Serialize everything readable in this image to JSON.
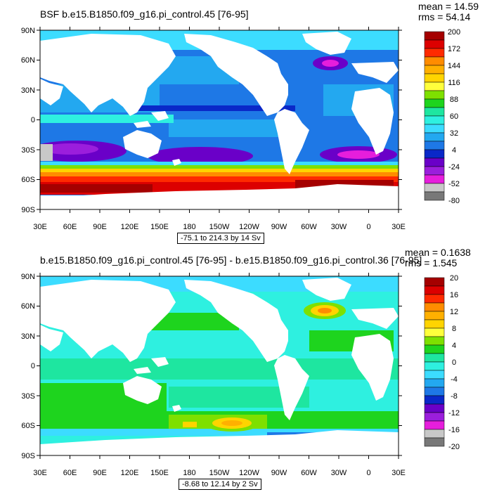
{
  "map_panels": [
    {
      "title": "BSF b.e15.B1850.f09_g16.pi_control.45 [76-95]",
      "mean_text": "mean = 14.59",
      "rms_text": "rms = 54.14",
      "range_text": "-75.1 to 214.3 by 14 Sv",
      "colorbar": {
        "labels": [
          "200",
          "172",
          "144",
          "116",
          "88",
          "60",
          "32",
          "4",
          "-24",
          "-52",
          "-80"
        ],
        "colors": [
          "#a50000",
          "#dc0000",
          "#ff2a00",
          "#ff8c00",
          "#ffb000",
          "#ffd400",
          "#ffff3c",
          "#7ee000",
          "#1ed41e",
          "#1ee6a0",
          "#2ef0e0",
          "#3cdcff",
          "#23a8f0",
          "#1e78e6",
          "#0a28c8",
          "#6a00c8",
          "#9b1edc",
          "#e61edc",
          "#c8c8c8",
          "#787878"
        ]
      },
      "map_summary": "Barotropic streamfunction: mostly blue/cyan ocean (~0-30 Sv), red/orange Antarctic Circumpolar Current band (~150-214 Sv), purple/violet negative gyres south of the ACC and in the Labrador Sea"
    },
    {
      "title": "b.e15.B1850.f09_g16.pi_control.45 [76-95] - b.e15.B1850.f09_g16.pi_control.36 [76-95]",
      "mean_text": "mean = 0.1638",
      "rms_text": "rms = 1.545",
      "range_text": "-8.68 to 12.14 by 2 Sv",
      "colorbar": {
        "labels": [
          "20",
          "16",
          "12",
          "8",
          "4",
          "0",
          "-4",
          "-8",
          "-12",
          "-16",
          "-20"
        ],
        "colors": [
          "#a50000",
          "#dc0000",
          "#ff2a00",
          "#ff8c00",
          "#ffb000",
          "#ffd400",
          "#ffff3c",
          "#7ee000",
          "#1ed41e",
          "#1ee6a0",
          "#2ef0e0",
          "#3cdcff",
          "#23a8f0",
          "#1e78e6",
          "#0a28c8",
          "#6a00c8",
          "#9b1edc",
          "#e61edc",
          "#c8c8c8",
          "#787878"
        ]
      },
      "map_summary": "Difference: mostly cyan/green (0 to +4 Sv), yellow/orange positive patches in the Labrador Sea and the South Pacific near 55S"
    }
  ],
  "lat_labels": [
    "90N",
    "60N",
    "30N",
    "0",
    "30S",
    "60S",
    "90S"
  ],
  "lon_labels": [
    "30E",
    "60E",
    "90E",
    "120E",
    "150E",
    "180",
    "150W",
    "120W",
    "90W",
    "60W",
    "30W",
    "0",
    "30E"
  ]
}
